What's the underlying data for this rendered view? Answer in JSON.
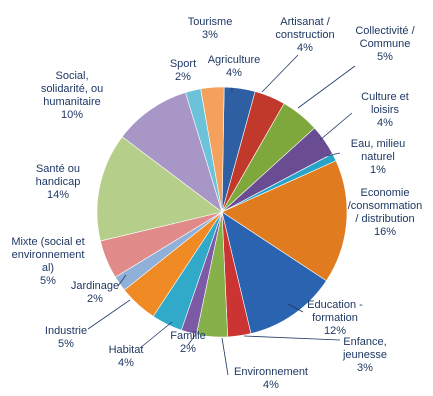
{
  "chart_data": {
    "type": "pie",
    "title": "",
    "slices": [
      {
        "name": "Agriculture",
        "label_lines": [
          "Agriculture"
        ],
        "value_label": "4%",
        "value": 4,
        "color": "#2e5fa3"
      },
      {
        "name": "Artisanat / construction",
        "label_lines": [
          "Artisanat /",
          "construction"
        ],
        "value_label": "4%",
        "value": 4,
        "color": "#c0392b"
      },
      {
        "name": "Collectivité / Commune",
        "label_lines": [
          "Collectivité /",
          "Commune"
        ],
        "value_label": "5%",
        "value": 5,
        "color": "#7fa83c"
      },
      {
        "name": "Culture et loisirs",
        "label_lines": [
          "Culture et",
          "loisirs"
        ],
        "value_label": "4%",
        "value": 4,
        "color": "#6a4c93"
      },
      {
        "name": "Eau, milieu naturel",
        "label_lines": [
          "Eau, milieu",
          "naturel"
        ],
        "value_label": "1%",
        "value": 1,
        "color": "#27a4c7"
      },
      {
        "name": "Economie /consommation / distribution",
        "label_lines": [
          "Economie",
          "/consommation",
          "/ distribution"
        ],
        "value_label": "16%",
        "value": 16,
        "color": "#e07b20"
      },
      {
        "name": "Education - formation",
        "label_lines": [
          "Education -",
          "formation"
        ],
        "value_label": "12%",
        "value": 12,
        "color": "#2a64b0"
      },
      {
        "name": "Enfance, jeunesse",
        "label_lines": [
          "Enfance,",
          "jeunesse"
        ],
        "value_label": "3%",
        "value": 3,
        "color": "#cc3333"
      },
      {
        "name": "Environnement",
        "label_lines": [
          "Environnement"
        ],
        "value_label": "4%",
        "value": 4,
        "color": "#86b04a"
      },
      {
        "name": "Famille",
        "label_lines": [
          "Famille"
        ],
        "value_label": "2%",
        "value": 2,
        "color": "#7c5aa6"
      },
      {
        "name": "Habitat",
        "label_lines": [
          "Habitat"
        ],
        "value_label": "4%",
        "value": 4,
        "color": "#31a9c9"
      },
      {
        "name": "Industrie",
        "label_lines": [
          "Industrie"
        ],
        "value_label": "5%",
        "value": 5,
        "color": "#f08a24"
      },
      {
        "name": "Jardinage",
        "label_lines": [
          "Jardinage"
        ],
        "value_label": "2%",
        "value": 2,
        "color": "#8fb0d8"
      },
      {
        "name": "Mixte (social et environnemental)",
        "label_lines": [
          "Mixte (social et",
          "environnement",
          "al)"
        ],
        "value_label": "5%",
        "value": 5,
        "color": "#e08a8a"
      },
      {
        "name": "Santé ou handicap",
        "label_lines": [
          "Santé ou",
          "handicap"
        ],
        "value_label": "14%",
        "value": 14,
        "color": "#b5cf8a"
      },
      {
        "name": "Social, solidarité, ou humanitaire",
        "label_lines": [
          "Social,",
          "solidarité, ou",
          "humanitaire"
        ],
        "value_label": "10%",
        "value": 10,
        "color": "#a896c7"
      },
      {
        "name": "Sport",
        "label_lines": [
          "Sport"
        ],
        "value_label": "2%",
        "value": 2,
        "color": "#6cc3d9"
      },
      {
        "name": "Tourisme",
        "label_lines": [
          "Tourisme"
        ],
        "value_label": "3%",
        "value": 3,
        "color": "#f5a05c"
      }
    ]
  }
}
